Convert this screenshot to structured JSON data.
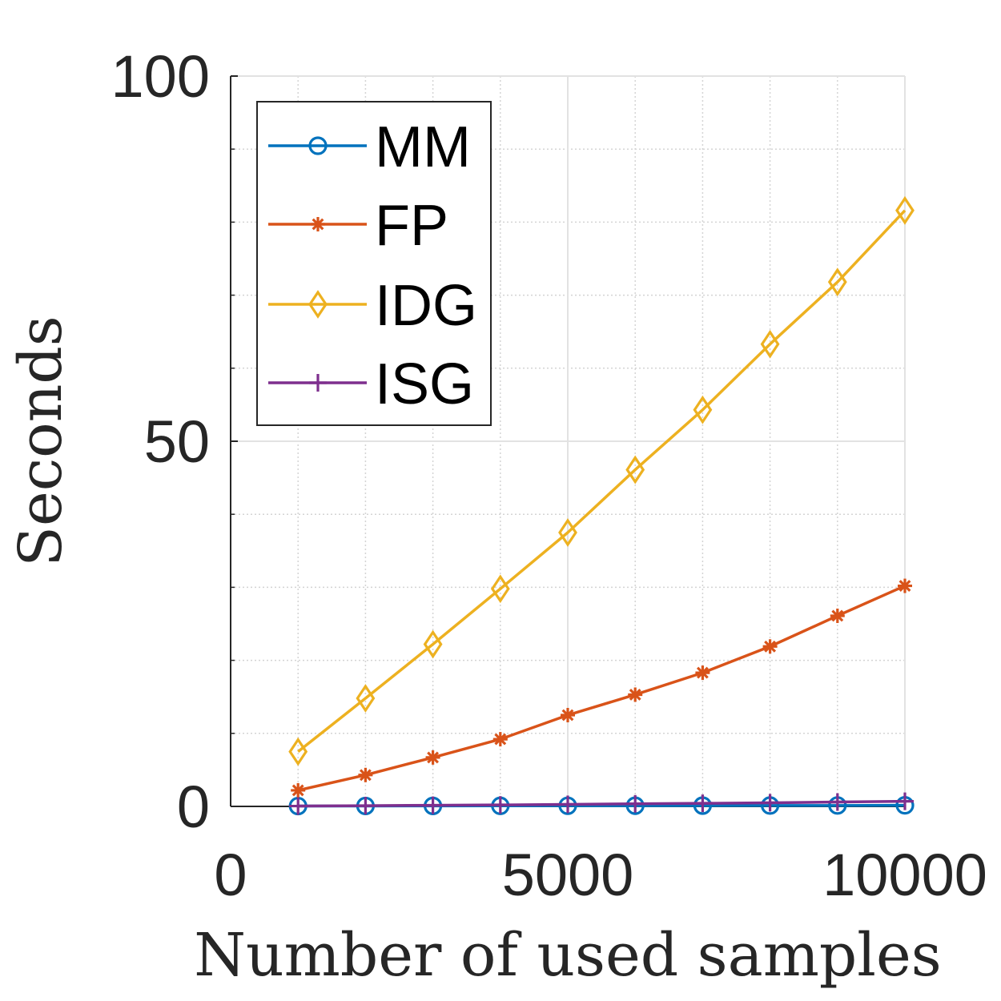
{
  "chart_data": {
    "type": "line",
    "title": "",
    "xlabel": "Number of used samples",
    "ylabel": "Seconds",
    "xlim": [
      0,
      10000
    ],
    "ylim": [
      0,
      100
    ],
    "xticks": [
      0,
      5000,
      10000
    ],
    "yticks": [
      0,
      50,
      100
    ],
    "xtick_labels": [
      "0",
      "5000",
      "10000"
    ],
    "ytick_labels": [
      "0",
      "50",
      "100"
    ],
    "minor_xticks": [
      1000,
      2000,
      3000,
      4000,
      6000,
      7000,
      8000,
      9000
    ],
    "minor_yticks": [
      10,
      20,
      30,
      40,
      60,
      70,
      80,
      90
    ],
    "grid": true,
    "legend_position": "top-left",
    "x": [
      1000,
      2000,
      3000,
      4000,
      5000,
      6000,
      7000,
      8000,
      9000,
      10000
    ],
    "series": [
      {
        "name": "MM",
        "color": "#0072BD",
        "marker": "circle",
        "values": [
          0.05,
          0.06,
          0.07,
          0.08,
          0.09,
          0.1,
          0.11,
          0.12,
          0.13,
          0.15
        ]
      },
      {
        "name": "FP",
        "color": "#D95319",
        "marker": "asterisk",
        "values": [
          2.2,
          4.3,
          6.7,
          9.2,
          12.5,
          15.3,
          18.3,
          21.9,
          26.1,
          30.2
        ]
      },
      {
        "name": "IDG",
        "color": "#EDB120",
        "marker": "diamond",
        "values": [
          7.5,
          14.8,
          22.2,
          29.8,
          37.5,
          46.1,
          54.3,
          63.3,
          71.8,
          81.6
        ]
      },
      {
        "name": "ISG",
        "color": "#7E2F8E",
        "marker": "plus",
        "values": [
          0.05,
          0.1,
          0.15,
          0.2,
          0.28,
          0.35,
          0.42,
          0.5,
          0.6,
          0.7
        ]
      }
    ]
  }
}
